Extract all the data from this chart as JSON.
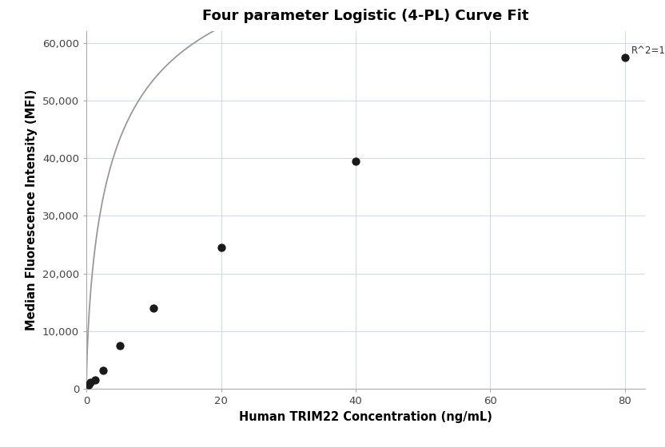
{
  "title": "Four parameter Logistic (4-PL) Curve Fit",
  "xlabel": "Human TRIM22 Concentration (ng/mL)",
  "ylabel": "Median Fluorescence Intensity (MFI)",
  "scatter_x": [
    0.3125,
    0.625,
    1.25,
    2.5,
    5.0,
    10.0,
    20.0,
    40.0,
    80.0
  ],
  "scatter_y": [
    700,
    1100,
    1600,
    3200,
    7500,
    14000,
    24500,
    39500,
    57500
  ],
  "xlim": [
    0,
    83
  ],
  "ylim": [
    0,
    62000
  ],
  "yticks": [
    0,
    10000,
    20000,
    30000,
    40000,
    50000,
    60000
  ],
  "xticks": [
    0,
    20,
    40,
    60,
    80
  ],
  "r2_text": "R^2=1",
  "dot_color": "#1a1a1a",
  "line_color": "#999999",
  "grid_color": "#cdd8ea",
  "bg_color": "#ffffff",
  "spine_color": "#aaaaaa",
  "title_fontsize": 13,
  "label_fontsize": 10.5,
  "tick_fontsize": 9.5,
  "figsize": [
    8.32,
    5.6
  ],
  "dpi": 100
}
